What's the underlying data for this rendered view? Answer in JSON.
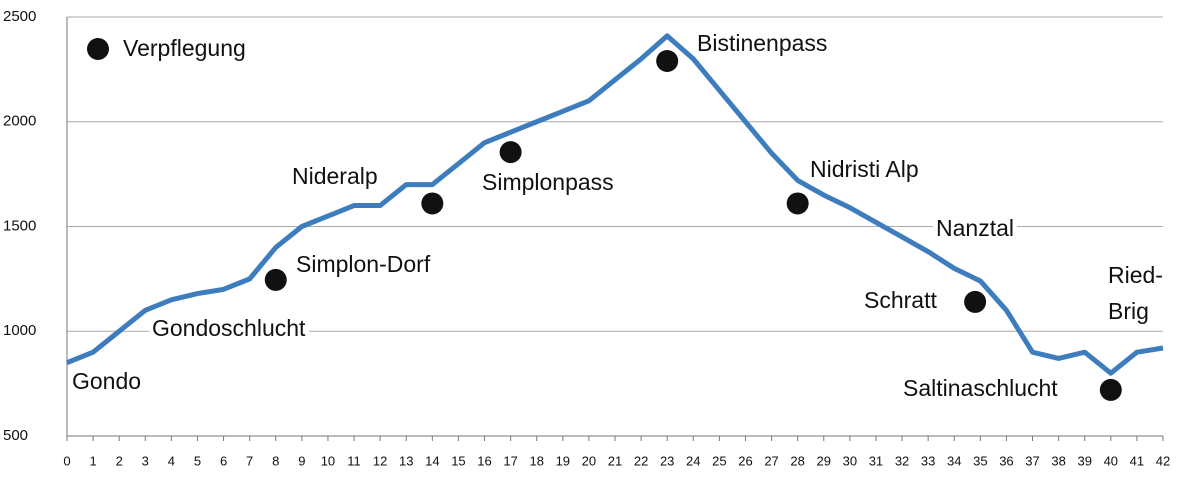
{
  "chart_data": {
    "type": "line",
    "x": [
      0,
      1,
      2,
      3,
      4,
      5,
      6,
      7,
      8,
      9,
      10,
      11,
      12,
      13,
      14,
      15,
      16,
      17,
      18,
      19,
      20,
      21,
      22,
      23,
      24,
      25,
      26,
      27,
      28,
      29,
      30,
      31,
      32,
      33,
      34,
      35,
      36,
      37,
      38,
      39,
      40,
      41,
      42
    ],
    "series": [
      {
        "color": "#3d7dbe",
        "values": [
          850,
          900,
          1000,
          1100,
          1150,
          1180,
          1200,
          1250,
          1400,
          1500,
          1550,
          1600,
          1600,
          1700,
          1700,
          1800,
          1900,
          1950,
          2000,
          2050,
          2100,
          2200,
          2300,
          2410,
          2300,
          2150,
          2000,
          1850,
          1720,
          1650,
          1590,
          1520,
          1450,
          1380,
          1300,
          1240,
          1100,
          900,
          870,
          900,
          800,
          900,
          920
        ]
      },
      {
        "name": "Verpflegung",
        "type": "scatter",
        "color": "#111111",
        "x": [
          8,
          14,
          17,
          23,
          28,
          34.8,
          40
        ],
        "values": [
          1245,
          1610,
          1855,
          2290,
          1610,
          1140,
          720
        ]
      }
    ],
    "annotations": [
      [
        "Gondo"
      ],
      [
        "Gondoschlucht"
      ],
      [
        "Simplon-Dorf"
      ],
      [
        "Nideralp"
      ],
      [
        "Simplonpass"
      ],
      [
        "Bistinenpass"
      ],
      [
        "Nidristi Alp"
      ],
      [
        "Nanztal"
      ],
      [
        "Schratt"
      ],
      [
        "Ried-",
        "Brig"
      ],
      [
        "Saltinaschlucht"
      ]
    ],
    "xlim": [
      0,
      42
    ],
    "xticks": [
      0,
      1,
      2,
      3,
      4,
      5,
      6,
      7,
      8,
      9,
      10,
      11,
      12,
      13,
      14,
      15,
      16,
      17,
      18,
      19,
      20,
      21,
      22,
      23,
      24,
      25,
      26,
      27,
      28,
      29,
      30,
      31,
      32,
      33,
      34,
      35,
      36,
      37,
      38,
      39,
      40,
      41,
      42
    ],
    "ylim": [
      500,
      2500
    ],
    "yticks": [
      500,
      1000,
      1500,
      2000,
      2500
    ],
    "grid": true,
    "legend": "upper left"
  }
}
